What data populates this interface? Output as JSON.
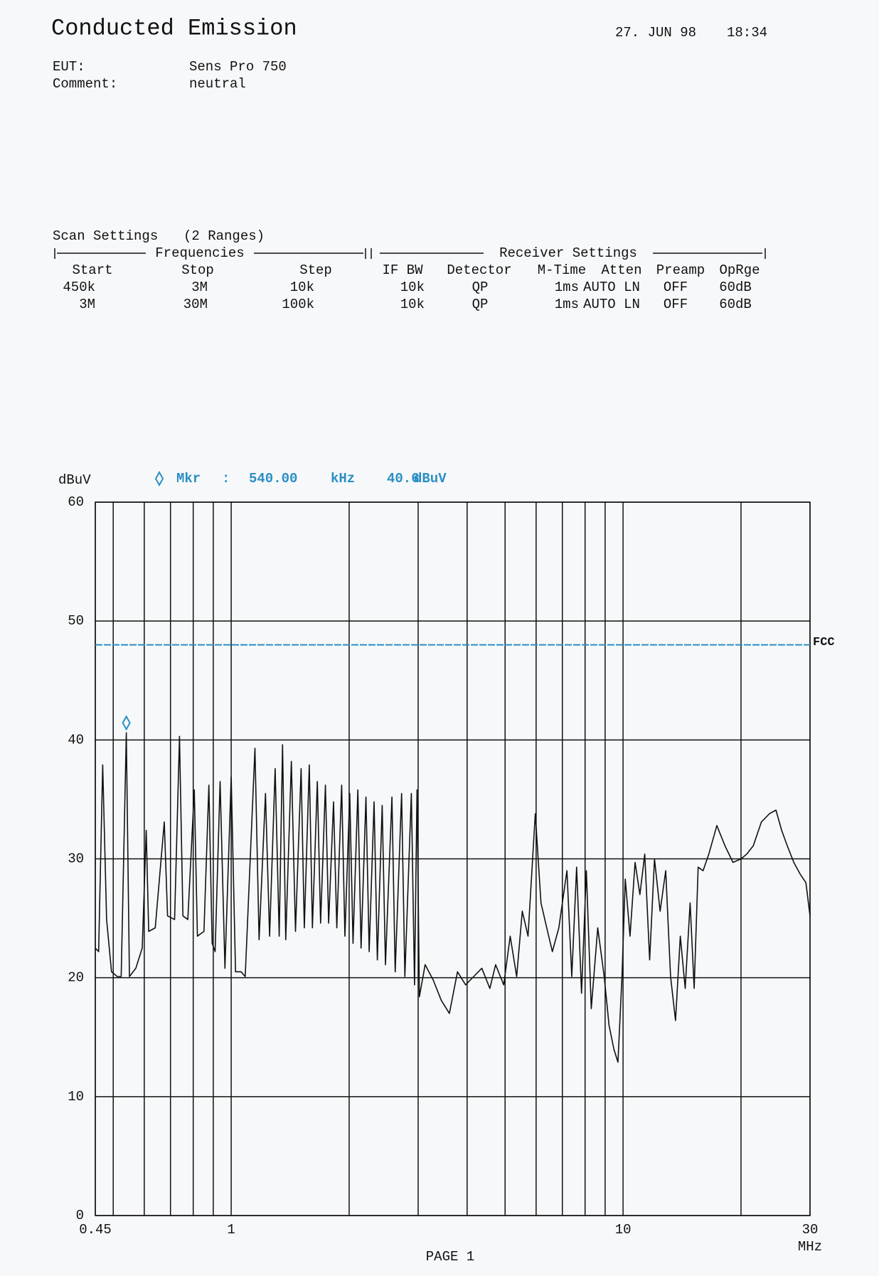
{
  "header": {
    "title": "Conducted Emission",
    "date": "27. JUN 98",
    "time": "18:34",
    "fields": [
      {
        "label": "EUT:",
        "value": "Sens Pro 750"
      },
      {
        "label": "Comment:",
        "value": "neutral"
      }
    ]
  },
  "scan_settings": {
    "title": "Scan Settings",
    "subtitle": "(2 Ranges)",
    "groups": [
      "Frequencies",
      "Receiver Settings"
    ],
    "columns": [
      "Start",
      "Stop",
      "Step",
      "IF BW",
      "Detector",
      "M-Time",
      "Atten",
      "Preamp",
      "OpRge"
    ],
    "rows": [
      [
        "450k",
        "3M",
        "10k",
        "10k",
        "QP",
        "1ms",
        "AUTO LN",
        "OFF",
        "60dB"
      ],
      [
        "3M",
        "30M",
        "100k",
        "10k",
        "QP",
        "1ms",
        "AUTO LN",
        "OFF",
        "60dB"
      ]
    ]
  },
  "chart_data": {
    "type": "line",
    "ylabel": "dBuV",
    "xlabel": "MHz",
    "xscale": "log",
    "grid": true,
    "color": "#111111",
    "xlim": [
      0.45,
      30
    ],
    "ylim": [
      0,
      60
    ],
    "xticks": [
      0.45,
      1,
      10,
      30
    ],
    "xgrid": [
      0.5,
      0.6,
      0.7,
      0.8,
      0.9,
      2,
      3,
      4,
      5,
      6,
      7,
      8,
      9,
      20
    ],
    "yticks": [
      0,
      10,
      20,
      30,
      40,
      50,
      60
    ],
    "limit_line": {
      "label": "FCC",
      "value": 48,
      "color": "#2a8fc4"
    },
    "marker": {
      "label": "Mkr",
      "separator": ":",
      "freq": "540.00",
      "freq_unit": "kHz",
      "level": "40.6",
      "level_unit": "dBuV",
      "x": 0.54,
      "y": 40.6,
      "color": "#2a8fc4"
    },
    "x": [
      0.45,
      0.459,
      0.47,
      0.481,
      0.495,
      0.512,
      0.524,
      0.54,
      0.55,
      0.571,
      0.593,
      0.607,
      0.616,
      0.64,
      0.675,
      0.688,
      0.717,
      0.738,
      0.753,
      0.775,
      0.805,
      0.82,
      0.852,
      0.877,
      0.894,
      0.91,
      0.937,
      0.964,
      1.0,
      1.026,
      1.06,
      1.086,
      1.15,
      1.178,
      1.223,
      1.253,
      1.295,
      1.326,
      1.352,
      1.378,
      1.424,
      1.459,
      1.508,
      1.537,
      1.582,
      1.612,
      1.659,
      1.691,
      1.74,
      1.773,
      1.825,
      1.86,
      1.914,
      1.951,
      2.007,
      2.046,
      2.105,
      2.145,
      2.208,
      2.25,
      2.315,
      2.36,
      2.428,
      2.475,
      2.571,
      2.621,
      2.722,
      2.775,
      2.882,
      2.937,
      2.98,
      3.022,
      3.125,
      3.278,
      3.437,
      3.605,
      3.78,
      3.965,
      4.158,
      4.361,
      4.572,
      4.73,
      4.96,
      5.153,
      5.351,
      5.531,
      5.723,
      5.972,
      6.175,
      6.386,
      6.602,
      6.856,
      7.19,
      7.399,
      7.613,
      7.834,
      8.061,
      8.295,
      8.616,
      8.95,
      9.209,
      9.476,
      9.702,
      9.938,
      10.13,
      10.42,
      10.73,
      11.04,
      11.36,
      11.69,
      12.03,
      12.43,
      12.85,
      13.22,
      13.61,
      14.0,
      14.41,
      14.83,
      15.19,
      15.55,
      16.0,
      16.55,
      17.35,
      18.2,
      19.08,
      20,
      20.69,
      21.49,
      22.54,
      23.64,
      24.56,
      25.39,
      26.25,
      27.27,
      28.33,
      29.28,
      30
    ],
    "values": [
      22.5,
      22.2,
      37.9,
      24.9,
      20.5,
      20.1,
      20.1,
      40.6,
      20.1,
      20.8,
      22.5,
      32.4,
      23.9,
      24.2,
      33.1,
      25.2,
      24.9,
      40.3,
      25.2,
      24.9,
      35.8,
      23.5,
      23.9,
      36.2,
      22.9,
      22.2,
      36.5,
      20.8,
      36.9,
      20.5,
      20.5,
      20.1,
      39.3,
      23.2,
      35.5,
      23.5,
      37.6,
      23.5,
      39.6,
      23.2,
      38.2,
      23.9,
      37.6,
      24.2,
      37.9,
      24.2,
      36.5,
      24.6,
      36.2,
      24.6,
      34.8,
      24.2,
      36.2,
      23.5,
      35.5,
      22.9,
      35.8,
      22.5,
      35.2,
      22.2,
      34.8,
      21.5,
      34.5,
      21.1,
      35.2,
      20.5,
      35.5,
      20.1,
      35.5,
      19.4,
      35.8,
      18.4,
      21.1,
      19.8,
      18.1,
      17.0,
      20.5,
      19.4,
      20.1,
      20.8,
      19.1,
      21.1,
      19.4,
      23.5,
      20.1,
      25.6,
      23.5,
      33.8,
      26.3,
      24.2,
      22.2,
      24.2,
      29.0,
      20.1,
      29.3,
      18.7,
      29.0,
      17.4,
      24.2,
      20.1,
      16.0,
      14.0,
      12.9,
      20.1,
      28.3,
      23.5,
      29.7,
      27.0,
      30.4,
      21.5,
      30.0,
      25.6,
      29.0,
      20.1,
      16.4,
      23.5,
      19.1,
      26.3,
      19.1,
      29.3,
      29.0,
      30.4,
      32.8,
      31.1,
      29.7,
      30.0,
      30.4,
      31.1,
      33.1,
      33.8,
      34.1,
      32.4,
      31.1,
      29.7,
      28.7,
      28.0,
      25.2
    ]
  },
  "footer": "PAGE 1"
}
